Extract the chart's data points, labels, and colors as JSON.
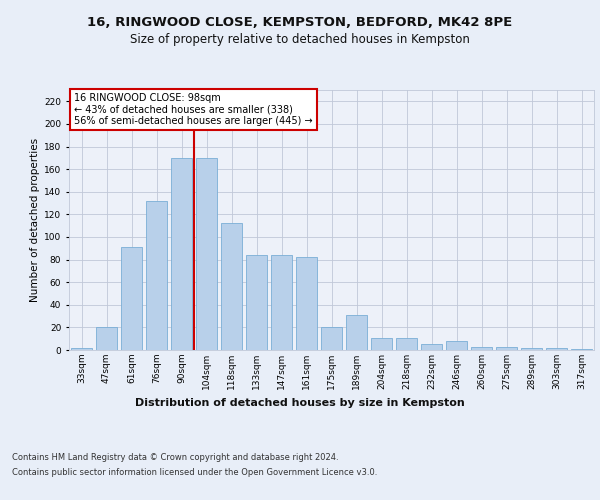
{
  "title1": "16, RINGWOOD CLOSE, KEMPSTON, BEDFORD, MK42 8PE",
  "title2": "Size of property relative to detached houses in Kempston",
  "xlabel": "Distribution of detached houses by size in Kempston",
  "ylabel": "Number of detached properties",
  "categories": [
    "33sqm",
    "47sqm",
    "61sqm",
    "76sqm",
    "90sqm",
    "104sqm",
    "118sqm",
    "133sqm",
    "147sqm",
    "161sqm",
    "175sqm",
    "189sqm",
    "204sqm",
    "218sqm",
    "232sqm",
    "246sqm",
    "260sqm",
    "275sqm",
    "289sqm",
    "303sqm",
    "317sqm"
  ],
  "values": [
    2,
    20,
    91,
    132,
    170,
    170,
    112,
    84,
    84,
    82,
    20,
    31,
    11,
    11,
    5,
    8,
    3,
    3,
    2,
    2,
    1
  ],
  "bar_color": "#b8d0ea",
  "bar_edge_color": "#7aaed6",
  "vline_color": "#cc0000",
  "vline_index": 4.5,
  "annotation_text": "16 RINGWOOD CLOSE: 98sqm\n← 43% of detached houses are smaller (338)\n56% of semi-detached houses are larger (445) →",
  "annotation_box_color": "#ffffff",
  "annotation_box_edge_color": "#cc0000",
  "ylim": [
    0,
    230
  ],
  "yticks": [
    0,
    20,
    40,
    60,
    80,
    100,
    120,
    140,
    160,
    180,
    200,
    220
  ],
  "footer1": "Contains HM Land Registry data © Crown copyright and database right 2024.",
  "footer2": "Contains public sector information licensed under the Open Government Licence v3.0.",
  "bg_color": "#e8eef8",
  "plot_bg_color": "#edf1f9",
  "title1_fontsize": 9.5,
  "title2_fontsize": 8.5,
  "xlabel_fontsize": 8,
  "ylabel_fontsize": 7.5,
  "tick_fontsize": 6.5,
  "footer_fontsize": 6,
  "annotation_fontsize": 7
}
